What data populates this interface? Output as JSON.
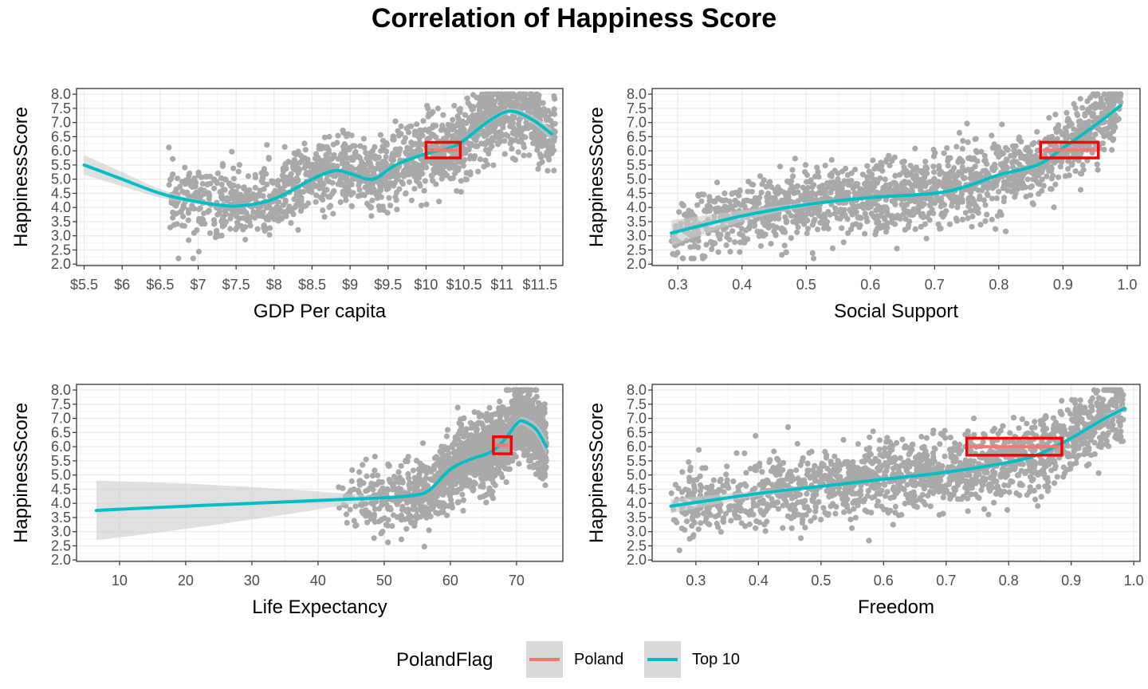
{
  "title": "Correlation of Happiness Score",
  "colors": {
    "points": "#a9a9a9",
    "top10_line": "#00bfc4",
    "poland_line": "#f8766d",
    "ribbon": "#cccccc",
    "highlight_box": "#ff0000",
    "grid_major": "#ebebeb",
    "grid_minor": "#f4f4f4",
    "panel_border": "#333333"
  },
  "legend": {
    "title": "PolandFlag",
    "items": [
      {
        "label": "Poland",
        "color": "#f8766d"
      },
      {
        "label": "Top 10",
        "color": "#00bfc4"
      }
    ]
  },
  "chart_data": [
    {
      "type": "scatter",
      "xlabel": "GDP Per capita",
      "ylabel": "HappinessScore",
      "xlim": [
        5.4,
        11.8
      ],
      "ylim": [
        1.95,
        8.2
      ],
      "x_ticks": [
        5.5,
        6,
        6.5,
        7,
        7.5,
        8,
        8.5,
        9,
        9.5,
        10,
        10.5,
        11,
        11.5
      ],
      "x_tick_labels": [
        "$5.5",
        "$6",
        "$6.5",
        "$7",
        "$7.5",
        "$8",
        "$8.5",
        "$9",
        "$9.5",
        "$10",
        "$10.5",
        "$11",
        "$11.5"
      ],
      "y_ticks": [
        2.0,
        2.5,
        3.0,
        3.5,
        4.0,
        4.5,
        5.0,
        5.5,
        6.0,
        6.5,
        7.0,
        7.5,
        8.0
      ],
      "y_tick_labels": [
        "2.0",
        "2.5",
        "3.0",
        "3.5",
        "4.0",
        "4.5",
        "5.0",
        "5.5",
        "6.0",
        "6.5",
        "7.0",
        "7.5",
        "8.0"
      ],
      "points_cloud": {
        "count": 1700,
        "x_range": [
          6.6,
          11.7
        ],
        "y_range": [
          2.2,
          8.0
        ]
      },
      "series": [
        {
          "name": "Top 10",
          "type": "smooth",
          "x": [
            5.5,
            6.0,
            6.5,
            7.0,
            7.5,
            8.0,
            8.5,
            8.8,
            9.0,
            9.3,
            9.6,
            10.0,
            10.4,
            10.8,
            11.1,
            11.4,
            11.65
          ],
          "y": [
            5.5,
            5.0,
            4.5,
            4.2,
            4.05,
            4.3,
            5.0,
            5.3,
            5.2,
            5.0,
            5.5,
            5.9,
            6.2,
            7.0,
            7.4,
            7.1,
            6.6
          ],
          "band": [
            0.35,
            0.25,
            0.15,
            0.08,
            0.06,
            0.05,
            0.05,
            0.05,
            0.05,
            0.05,
            0.05,
            0.05,
            0.06,
            0.08,
            0.1,
            0.15,
            0.2
          ]
        }
      ],
      "poland_box": {
        "x": [
          10.0,
          10.45
        ],
        "y": [
          5.75,
          6.3
        ]
      }
    },
    {
      "type": "scatter",
      "xlabel": "Social Support",
      "ylabel": "HappinessScore",
      "xlim": [
        0.26,
        1.02
      ],
      "ylim": [
        1.95,
        8.2
      ],
      "x_ticks": [
        0.3,
        0.4,
        0.5,
        0.6,
        0.7,
        0.8,
        0.9,
        1.0
      ],
      "x_tick_labels": [
        "0.3",
        "0.4",
        "0.5",
        "0.6",
        "0.7",
        "0.8",
        "0.9",
        "1.0"
      ],
      "y_ticks": [
        2.0,
        2.5,
        3.0,
        3.5,
        4.0,
        4.5,
        5.0,
        5.5,
        6.0,
        6.5,
        7.0,
        7.5,
        8.0
      ],
      "y_tick_labels": [
        "2.0",
        "2.5",
        "3.0",
        "3.5",
        "4.0",
        "4.5",
        "5.0",
        "5.5",
        "6.0",
        "6.5",
        "7.0",
        "7.5",
        "8.0"
      ],
      "points_cloud": {
        "count": 1700,
        "x_range": [
          0.29,
          0.99
        ],
        "y_range": [
          2.2,
          8.0
        ]
      },
      "series": [
        {
          "name": "Top 10",
          "type": "smooth",
          "x": [
            0.29,
            0.4,
            0.5,
            0.6,
            0.7,
            0.75,
            0.8,
            0.86,
            0.9,
            0.95,
            0.99
          ],
          "y": [
            3.1,
            3.7,
            4.1,
            4.35,
            4.5,
            4.75,
            5.15,
            5.5,
            6.1,
            6.9,
            7.6
          ],
          "band": [
            0.45,
            0.2,
            0.08,
            0.05,
            0.04,
            0.04,
            0.04,
            0.04,
            0.05,
            0.07,
            0.1
          ]
        }
      ],
      "poland_box": {
        "x": [
          0.865,
          0.955
        ],
        "y": [
          5.75,
          6.3
        ]
      }
    },
    {
      "type": "scatter",
      "xlabel": "Life Expectancy",
      "ylabel": "HappinessScore",
      "xlim": [
        3.5,
        77
      ],
      "ylim": [
        1.95,
        8.2
      ],
      "x_ticks": [
        10,
        20,
        30,
        40,
        50,
        60,
        70
      ],
      "x_tick_labels": [
        "10",
        "20",
        "30",
        "40",
        "50",
        "60",
        "70"
      ],
      "y_ticks": [
        2.0,
        2.5,
        3.0,
        3.5,
        4.0,
        4.5,
        5.0,
        5.5,
        6.0,
        6.5,
        7.0,
        7.5,
        8.0
      ],
      "y_tick_labels": [
        "2.0",
        "2.5",
        "3.0",
        "3.5",
        "4.0",
        "4.5",
        "5.0",
        "5.5",
        "6.0",
        "6.5",
        "7.0",
        "7.5",
        "8.0"
      ],
      "points_cloud": {
        "count": 1700,
        "x_range": [
          42,
          74.5
        ],
        "y_range": [
          2.2,
          8.0
        ]
      },
      "series": [
        {
          "name": "Top 10",
          "type": "smooth",
          "x": [
            6.5,
            20,
            35,
            45,
            50,
            55,
            57,
            60,
            63,
            66,
            68,
            70,
            71,
            73,
            74.5
          ],
          "y": [
            3.75,
            3.9,
            4.05,
            4.15,
            4.2,
            4.3,
            4.5,
            5.2,
            5.55,
            5.8,
            6.2,
            6.8,
            6.9,
            6.6,
            6.0
          ],
          "band": [
            1.05,
            0.8,
            0.45,
            0.18,
            0.06,
            0.05,
            0.05,
            0.05,
            0.05,
            0.06,
            0.08,
            0.12,
            0.15,
            0.2,
            0.3
          ]
        }
      ],
      "poland_box": {
        "x": [
          66.5,
          69.2
        ],
        "y": [
          5.75,
          6.35
        ]
      }
    },
    {
      "type": "scatter",
      "xlabel": "Freedom",
      "ylabel": "HappinessScore",
      "xlim": [
        0.23,
        1.01
      ],
      "ylim": [
        1.95,
        8.2
      ],
      "x_ticks": [
        0.3,
        0.4,
        0.5,
        0.6,
        0.7,
        0.8,
        0.9,
        1.0
      ],
      "x_tick_labels": [
        "0.3",
        "0.4",
        "0.5",
        "0.6",
        "0.7",
        "0.8",
        "0.9",
        "1.0"
      ],
      "y_ticks": [
        2.0,
        2.5,
        3.0,
        3.5,
        4.0,
        4.5,
        5.0,
        5.5,
        6.0,
        6.5,
        7.0,
        7.5,
        8.0
      ],
      "y_tick_labels": [
        "2.0",
        "2.5",
        "3.0",
        "3.5",
        "4.0",
        "4.5",
        "5.0",
        "5.5",
        "6.0",
        "6.5",
        "7.0",
        "7.5",
        "8.0"
      ],
      "points_cloud": {
        "count": 1700,
        "x_range": [
          0.26,
          0.985
        ],
        "y_range": [
          2.2,
          8.0
        ]
      },
      "series": [
        {
          "name": "Top 10",
          "type": "smooth",
          "x": [
            0.26,
            0.4,
            0.5,
            0.6,
            0.7,
            0.8,
            0.85,
            0.9,
            0.95,
            0.985
          ],
          "y": [
            3.9,
            4.35,
            4.6,
            4.85,
            5.1,
            5.45,
            5.75,
            6.3,
            6.95,
            7.35
          ],
          "band": [
            0.25,
            0.1,
            0.05,
            0.04,
            0.04,
            0.04,
            0.05,
            0.06,
            0.08,
            0.12
          ]
        }
      ],
      "poland_box": {
        "x": [
          0.733,
          0.885
        ],
        "y": [
          5.7,
          6.3
        ]
      }
    }
  ]
}
